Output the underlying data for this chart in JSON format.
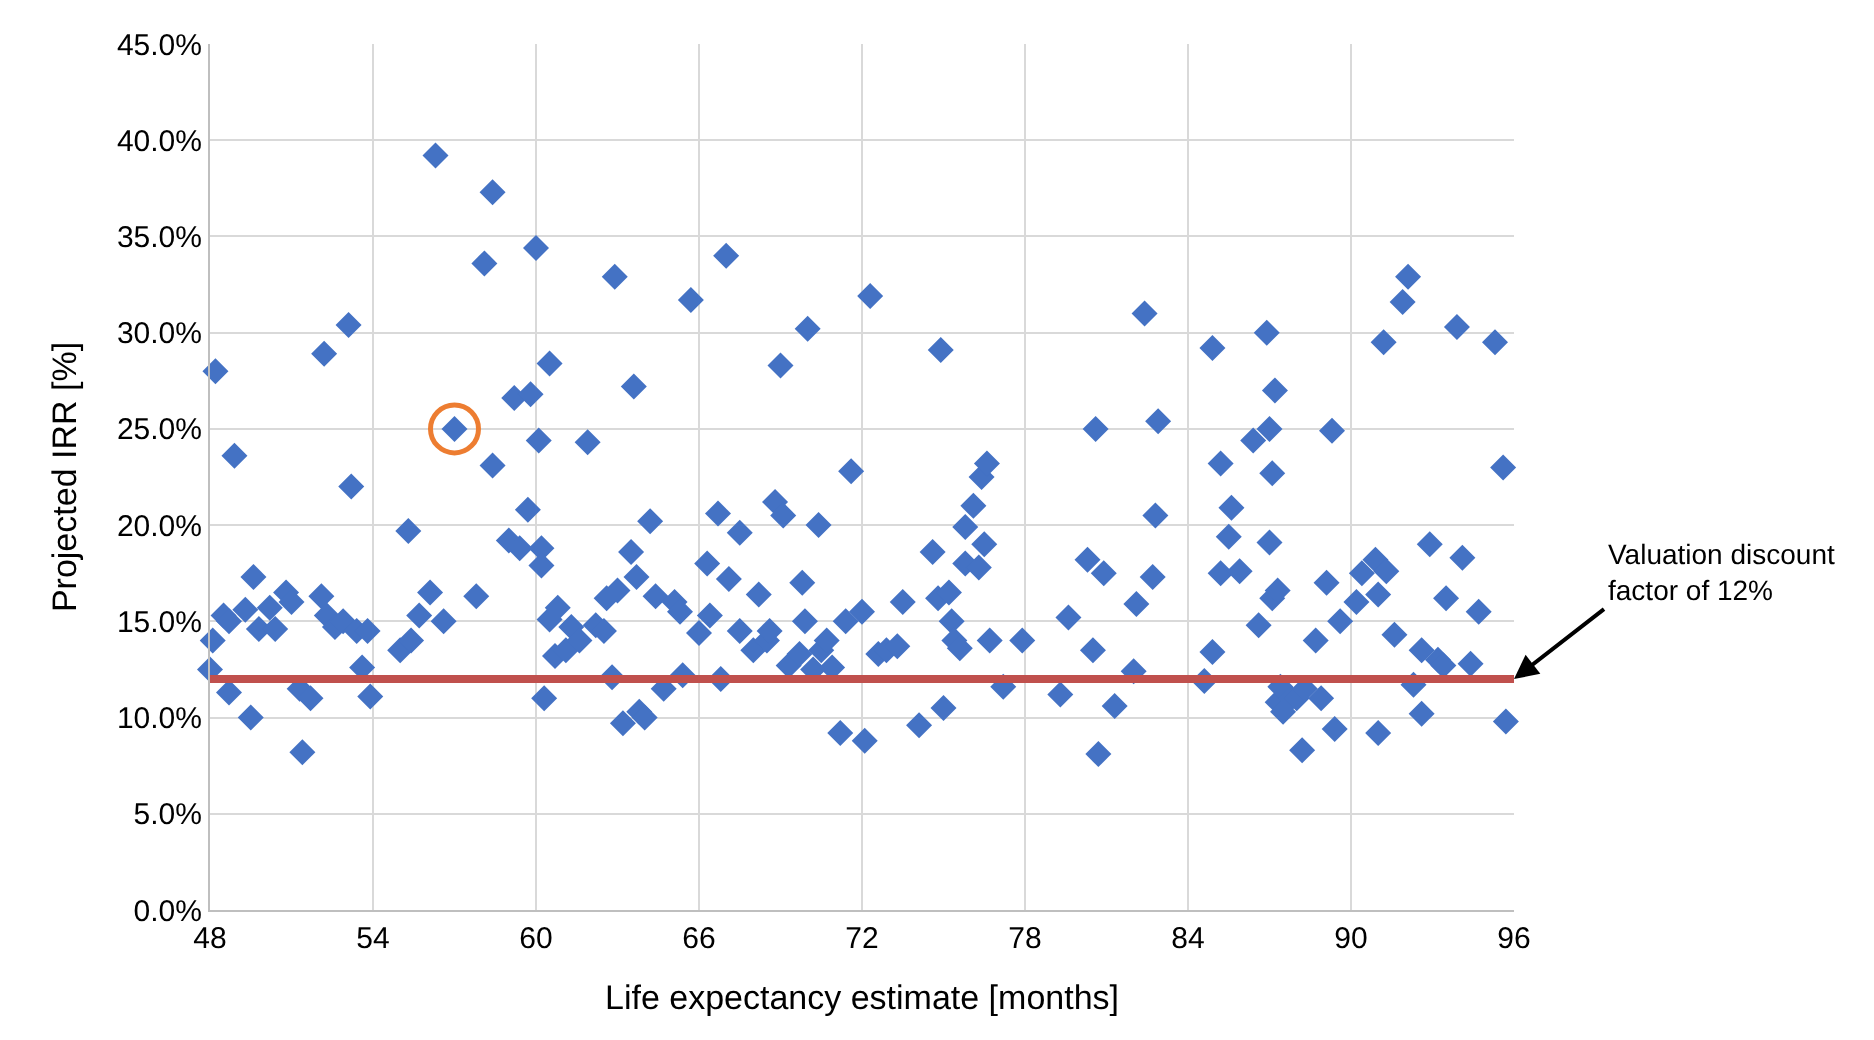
{
  "chart_data": {
    "type": "scatter",
    "xlabel": "Life expectancy estimate [months]",
    "ylabel": "Projected IRR [%]",
    "xlim": [
      48,
      96
    ],
    "xticks": [
      48,
      54,
      60,
      66,
      72,
      78,
      84,
      90,
      96
    ],
    "ylim": [
      0,
      45
    ],
    "yticks": [
      {
        "value": 0,
        "label": "0.0%"
      },
      {
        "value": 5,
        "label": "5.0%"
      },
      {
        "value": 10,
        "label": "10.0%"
      },
      {
        "value": 15,
        "label": "15.0%"
      },
      {
        "value": 20,
        "label": "20.0%"
      },
      {
        "value": 25,
        "label": "25.0%"
      },
      {
        "value": 30,
        "label": "30.0%"
      },
      {
        "value": 35,
        "label": "35.0%"
      },
      {
        "value": 40,
        "label": "40.0%"
      },
      {
        "value": 45,
        "label": "45.0%"
      }
    ],
    "grid": true,
    "series": [
      {
        "color": "#4472c4",
        "marker": "diamond",
        "x": [
          48.2,
          48.1,
          48.0,
          48.5,
          48.7,
          48.9,
          48.7,
          49.3,
          49.5,
          49.6,
          49.8,
          50.2,
          50.4,
          50.8,
          51.0,
          51.3,
          51.4,
          51.7,
          52.1,
          52.2,
          52.3,
          52.6,
          52.9,
          53.1,
          53.2,
          53.4,
          53.6,
          53.9,
          53.8,
          55.0,
          55.3,
          55.4,
          55.7,
          56.1,
          56.3,
          56.6,
          57.0,
          57.8,
          58.1,
          58.4,
          58.4,
          59.0,
          59.2,
          59.4,
          59.7,
          59.8,
          60.0,
          60.1,
          60.2,
          60.3,
          60.2,
          60.5,
          60.5,
          60.7,
          60.8,
          61.1,
          61.3,
          61.6,
          61.9,
          62.2,
          62.6,
          62.5,
          62.9,
          62.8,
          63.0,
          63.2,
          63.5,
          63.6,
          63.8,
          63.7,
          64.0,
          64.2,
          64.4,
          64.7,
          65.1,
          65.3,
          65.4,
          65.7,
          66.0,
          66.3,
          66.4,
          66.7,
          66.8,
          67.0,
          67.1,
          67.5,
          67.5,
          68.0,
          68.2,
          68.5,
          68.6,
          68.8,
          69.0,
          69.1,
          69.3,
          69.7,
          69.8,
          69.9,
          70.0,
          70.2,
          70.4,
          70.5,
          70.7,
          70.9,
          71.2,
          71.4,
          71.6,
          72.0,
          72.1,
          72.3,
          72.6,
          72.9,
          73.3,
          73.5,
          74.1,
          74.6,
          74.8,
          74.9,
          75.0,
          75.3,
          75.2,
          75.4,
          75.6,
          75.8,
          75.8,
          76.1,
          76.3,
          76.4,
          76.5,
          76.6,
          76.7,
          77.2,
          77.9,
          79.3,
          79.6,
          80.3,
          80.5,
          80.6,
          80.7,
          80.9,
          81.3,
          82.0,
          82.1,
          82.4,
          82.7,
          82.8,
          82.9,
          84.6,
          84.9,
          84.9,
          85.2,
          85.2,
          85.5,
          85.6,
          85.9,
          86.4,
          86.6,
          86.9,
          87.0,
          87.1,
          87.0,
          87.1,
          87.3,
          87.2,
          87.3,
          87.4,
          87.5,
          87.8,
          88.0,
          88.2,
          88.3,
          88.7,
          88.9,
          89.1,
          89.3,
          89.4,
          89.6,
          90.2,
          90.4,
          90.9,
          91.0,
          91.2,
          91.0,
          91.3,
          91.6,
          91.9,
          92.1,
          92.3,
          92.6,
          92.6,
          92.9,
          93.2,
          93.4,
          93.5,
          93.9,
          94.1,
          94.4,
          94.7,
          95.3,
          95.6,
          95.7
        ],
        "values": [
          28.0,
          14.0,
          12.5,
          15.3,
          11.3,
          23.6,
          15.0,
          15.6,
          10.0,
          17.3,
          14.6,
          15.7,
          14.6,
          16.5,
          16.0,
          11.5,
          8.2,
          11.0,
          16.3,
          28.9,
          15.3,
          14.7,
          15.0,
          30.4,
          22.0,
          14.5,
          12.6,
          11.1,
          14.5,
          13.5,
          19.7,
          14.0,
          15.3,
          16.5,
          39.2,
          15.0,
          25.0,
          16.3,
          33.6,
          37.3,
          23.1,
          19.2,
          26.6,
          18.8,
          20.8,
          26.8,
          34.4,
          24.4,
          18.8,
          11.0,
          17.9,
          28.4,
          15.1,
          13.2,
          15.7,
          13.5,
          14.7,
          14.0,
          24.3,
          14.8,
          16.2,
          14.5,
          32.9,
          12.1,
          16.6,
          9.7,
          18.6,
          27.2,
          10.3,
          17.3,
          10.0,
          20.2,
          16.3,
          11.5,
          16.0,
          15.5,
          12.2,
          31.7,
          14.4,
          18.0,
          15.3,
          20.6,
          12.0,
          34.0,
          17.2,
          14.5,
          19.6,
          13.5,
          16.4,
          14.0,
          14.5,
          21.2,
          28.3,
          20.5,
          12.7,
          13.3,
          17.0,
          15.0,
          30.2,
          12.5,
          20.0,
          13.5,
          14.0,
          12.6,
          9.2,
          15.0,
          22.8,
          15.5,
          8.8,
          31.9,
          13.3,
          13.5,
          13.7,
          16.0,
          9.6,
          18.6,
          16.2,
          29.1,
          10.5,
          15.0,
          16.5,
          14.0,
          13.6,
          18.0,
          19.9,
          21.0,
          17.8,
          22.5,
          19.0,
          23.2,
          14.0,
          11.6,
          14.0,
          11.2,
          15.2,
          18.2,
          13.5,
          25.0,
          8.1,
          17.5,
          10.6,
          12.4,
          15.9,
          31.0,
          17.3,
          20.5,
          25.4,
          11.9,
          13.4,
          29.2,
          23.2,
          17.5,
          19.4,
          20.9,
          17.6,
          24.4,
          14.8,
          30.0,
          25.0,
          22.7,
          19.1,
          16.2,
          16.6,
          27.0,
          10.8,
          11.6,
          10.3,
          11.0,
          11.0,
          8.3,
          11.5,
          14.0,
          11.0,
          17.0,
          24.9,
          9.4,
          15.0,
          16.0,
          17.5,
          18.2,
          16.4,
          29.5,
          9.2,
          17.6,
          14.3,
          31.6,
          32.9,
          11.7,
          13.5,
          10.2,
          19.0,
          13.0,
          12.7,
          16.2,
          30.3,
          18.3,
          12.8,
          15.5,
          29.5,
          23.0,
          9.8
        ]
      },
      {
        "color": "#ed7d31",
        "marker": "circle",
        "x": [
          57.0
        ],
        "values": [
          25.0
        ]
      }
    ],
    "ref_lines": [
      {
        "axis": "y",
        "value": 12,
        "color": "#c0504d",
        "line_style": "solid"
      }
    ],
    "annotations": [
      {
        "text": "Valuation discount\nfactor of 12%",
        "x": 96,
        "y": 12
      }
    ]
  }
}
